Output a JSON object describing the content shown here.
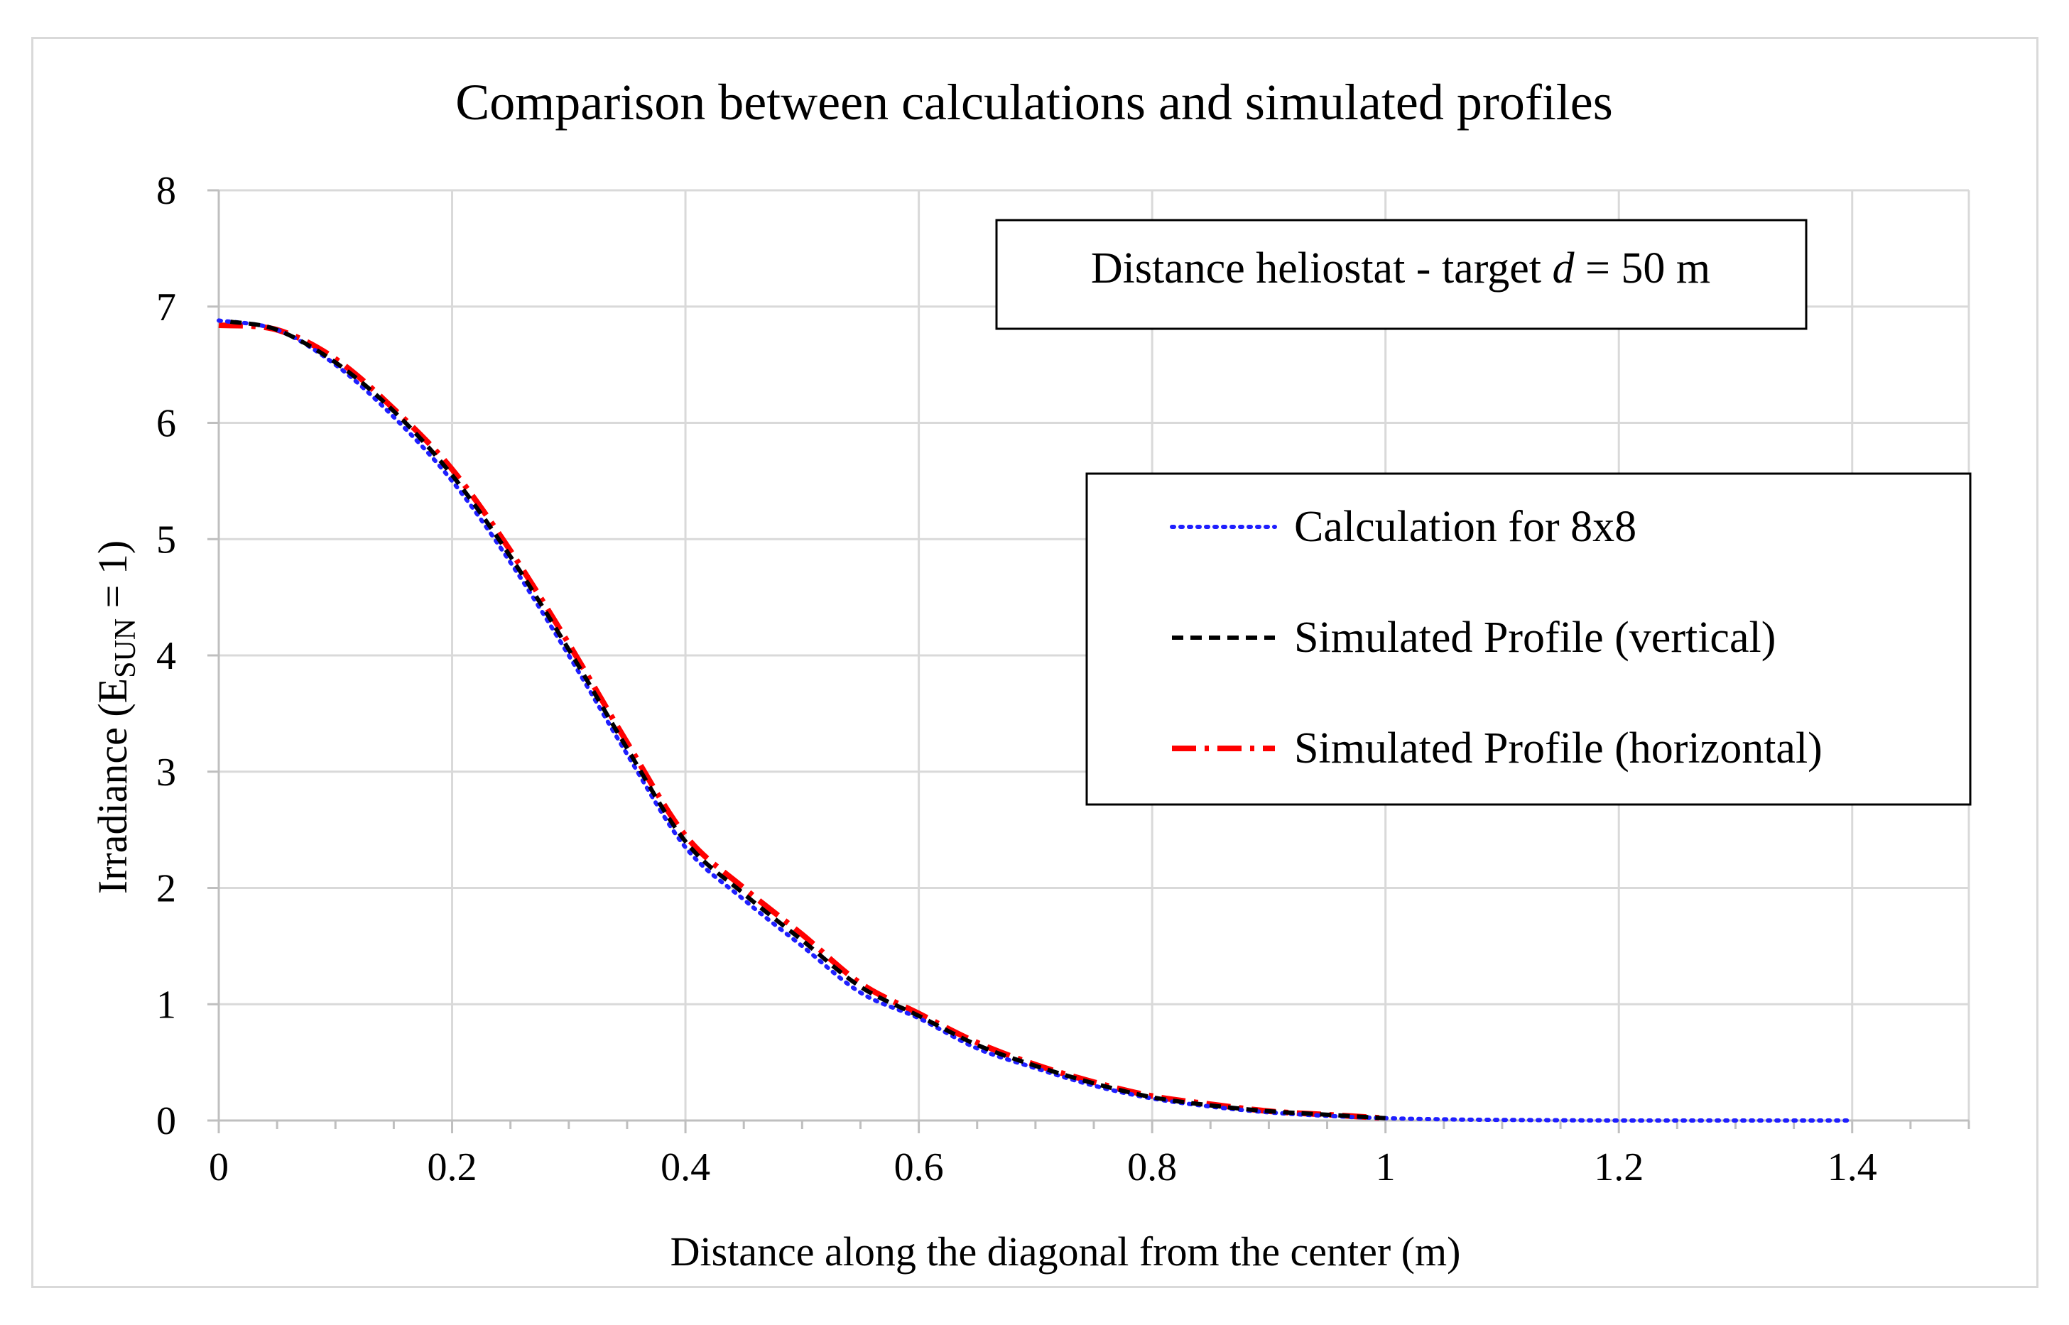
{
  "chart_data": {
    "type": "line",
    "title": "Comparison between calculations and simulated profiles",
    "xlabel": "Distance along the diagonal from the center (m)",
    "ylabel_main": "Irradiance (E",
    "ylabel_sub": "SUN",
    "ylabel_tail": " = 1)",
    "xlim": [
      0,
      1.5
    ],
    "ylim": [
      0,
      8
    ],
    "grid": true,
    "x_ticks": [
      "0",
      "0.2",
      "0.4",
      "0.6",
      "0.8",
      "1",
      "1.2",
      "1.4"
    ],
    "x_tick_values": [
      0,
      0.2,
      0.4,
      0.6,
      0.8,
      1.0,
      1.2,
      1.4
    ],
    "y_ticks": [
      "0",
      "1",
      "2",
      "3",
      "4",
      "5",
      "6",
      "7",
      "8"
    ],
    "y_tick_values": [
      0,
      1,
      2,
      3,
      4,
      5,
      6,
      7,
      8
    ],
    "annotation": {
      "prefix": "Distance heliostat - target ",
      "variable": "d",
      "suffix": " = 50 m"
    },
    "legend_position": "right",
    "series": [
      {
        "name": "Calculation for 8x8",
        "color": "#1f1fff",
        "style": "dotted",
        "x": [
          0,
          0.05,
          0.1,
          0.15,
          0.2,
          0.25,
          0.3,
          0.35,
          0.4,
          0.45,
          0.5,
          0.55,
          0.6,
          0.65,
          0.7,
          0.75,
          0.8,
          0.85,
          0.9,
          0.95,
          1.0,
          1.05,
          1.1,
          1.2,
          1.3,
          1.4
        ],
        "y": [
          6.88,
          6.8,
          6.5,
          6.05,
          5.5,
          4.8,
          4.0,
          3.15,
          2.35,
          1.9,
          1.5,
          1.1,
          0.88,
          0.62,
          0.45,
          0.3,
          0.19,
          0.12,
          0.07,
          0.04,
          0.02,
          0.01,
          0.005,
          0.0,
          0.0,
          0.0
        ]
      },
      {
        "name": "Simulated Profile (vertical)",
        "color": "#000000",
        "style": "dashed",
        "x": [
          0.01,
          0.05,
          0.1,
          0.15,
          0.2,
          0.25,
          0.3,
          0.35,
          0.4,
          0.45,
          0.5,
          0.55,
          0.6,
          0.65,
          0.7,
          0.75,
          0.8,
          0.85,
          0.9,
          0.95,
          1.0
        ],
        "y": [
          6.87,
          6.8,
          6.52,
          6.1,
          5.55,
          4.85,
          4.05,
          3.2,
          2.4,
          1.95,
          1.55,
          1.15,
          0.9,
          0.65,
          0.47,
          0.32,
          0.2,
          0.13,
          0.08,
          0.05,
          0.02
        ]
      },
      {
        "name": "Simulated Profile (horizontal)",
        "color": "#ff0000",
        "style": "dashdot",
        "x": [
          0,
          0.05,
          0.1,
          0.15,
          0.2,
          0.25,
          0.3,
          0.35,
          0.4,
          0.45,
          0.5,
          0.55,
          0.6,
          0.65,
          0.7,
          0.75,
          0.8,
          0.85,
          0.9,
          0.95,
          1.0
        ],
        "y": [
          6.84,
          6.8,
          6.55,
          6.12,
          5.6,
          4.9,
          4.1,
          3.25,
          2.45,
          2.0,
          1.6,
          1.18,
          0.92,
          0.67,
          0.48,
          0.33,
          0.21,
          0.14,
          0.08,
          0.05,
          0.02
        ]
      }
    ]
  }
}
